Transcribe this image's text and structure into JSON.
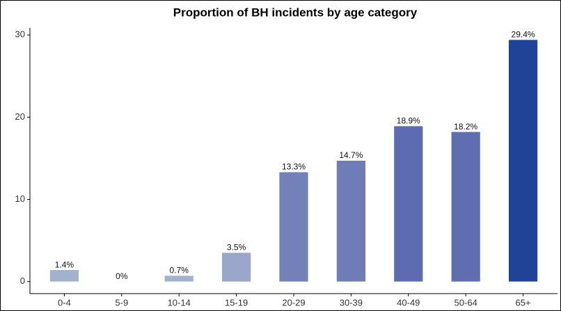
{
  "chart_data": {
    "type": "bar",
    "title": "Proportion of BH incidents by age category",
    "categories": [
      "0-4",
      "5-9",
      "10-14",
      "15-19",
      "20-29",
      "30-39",
      "40-49",
      "50-64",
      "65+"
    ],
    "values": [
      1.4,
      0,
      0.7,
      3.5,
      13.3,
      14.7,
      18.9,
      18.2,
      29.4
    ],
    "value_labels": [
      "1.4%",
      "0%",
      "0.7%",
      "3.5%",
      "13.3%",
      "14.7%",
      "18.9%",
      "18.2%",
      "29.4%"
    ],
    "colors": [
      "#a3b1cc",
      "#a3b1cc",
      "#a3b1cc",
      "#9aa7ca",
      "#7381b8",
      "#6f7db6",
      "#5d6bb0",
      "#5f6db1",
      "#1f4497"
    ],
    "ylim": [
      -1.47,
      30.87
    ],
    "yticks": [
      0,
      10,
      20,
      30
    ],
    "grid": false
  }
}
